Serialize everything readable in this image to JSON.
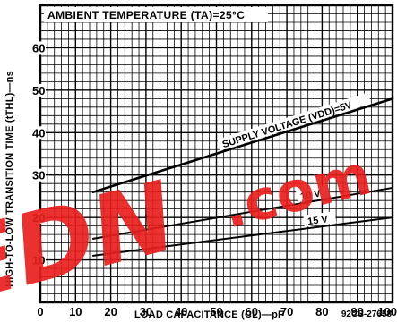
{
  "chart_data": {
    "type": "line",
    "title": "AMBIENT TEMPERATURE (TA)=25°C",
    "xlabel": "LOAD CAPACITANCE (CL)—pF",
    "ylabel": "HIGH-TO-LOW TRANSITION TIME (tTHL)—ns",
    "xlim": [
      0,
      100
    ],
    "ylim": [
      0,
      70
    ],
    "xticks": [
      0,
      10,
      20,
      30,
      40,
      50,
      60,
      70,
      80,
      90,
      100
    ],
    "xtick_labels": [
      "0",
      "10",
      "20",
      "30",
      "40",
      "50",
      "60",
      "70",
      "80",
      "90",
      "100"
    ],
    "yticks": [
      10,
      20,
      30,
      40,
      50,
      60
    ],
    "ytick_labels": [
      "10",
      "20",
      "30",
      "40",
      "50",
      "60"
    ],
    "grid": true,
    "series": [
      {
        "name": "SUPPLY VOLTAGE (VDD)=5V",
        "x": [
          15,
          100
        ],
        "y": [
          26,
          48
        ]
      },
      {
        "name": "10 V",
        "x": [
          15,
          100
        ],
        "y": [
          15,
          27
        ]
      },
      {
        "name": "15 V",
        "x": [
          15,
          100
        ],
        "y": [
          11,
          20
        ]
      }
    ],
    "annotations": [
      "92CS-27658"
    ],
    "watermark": "EDN.com"
  }
}
